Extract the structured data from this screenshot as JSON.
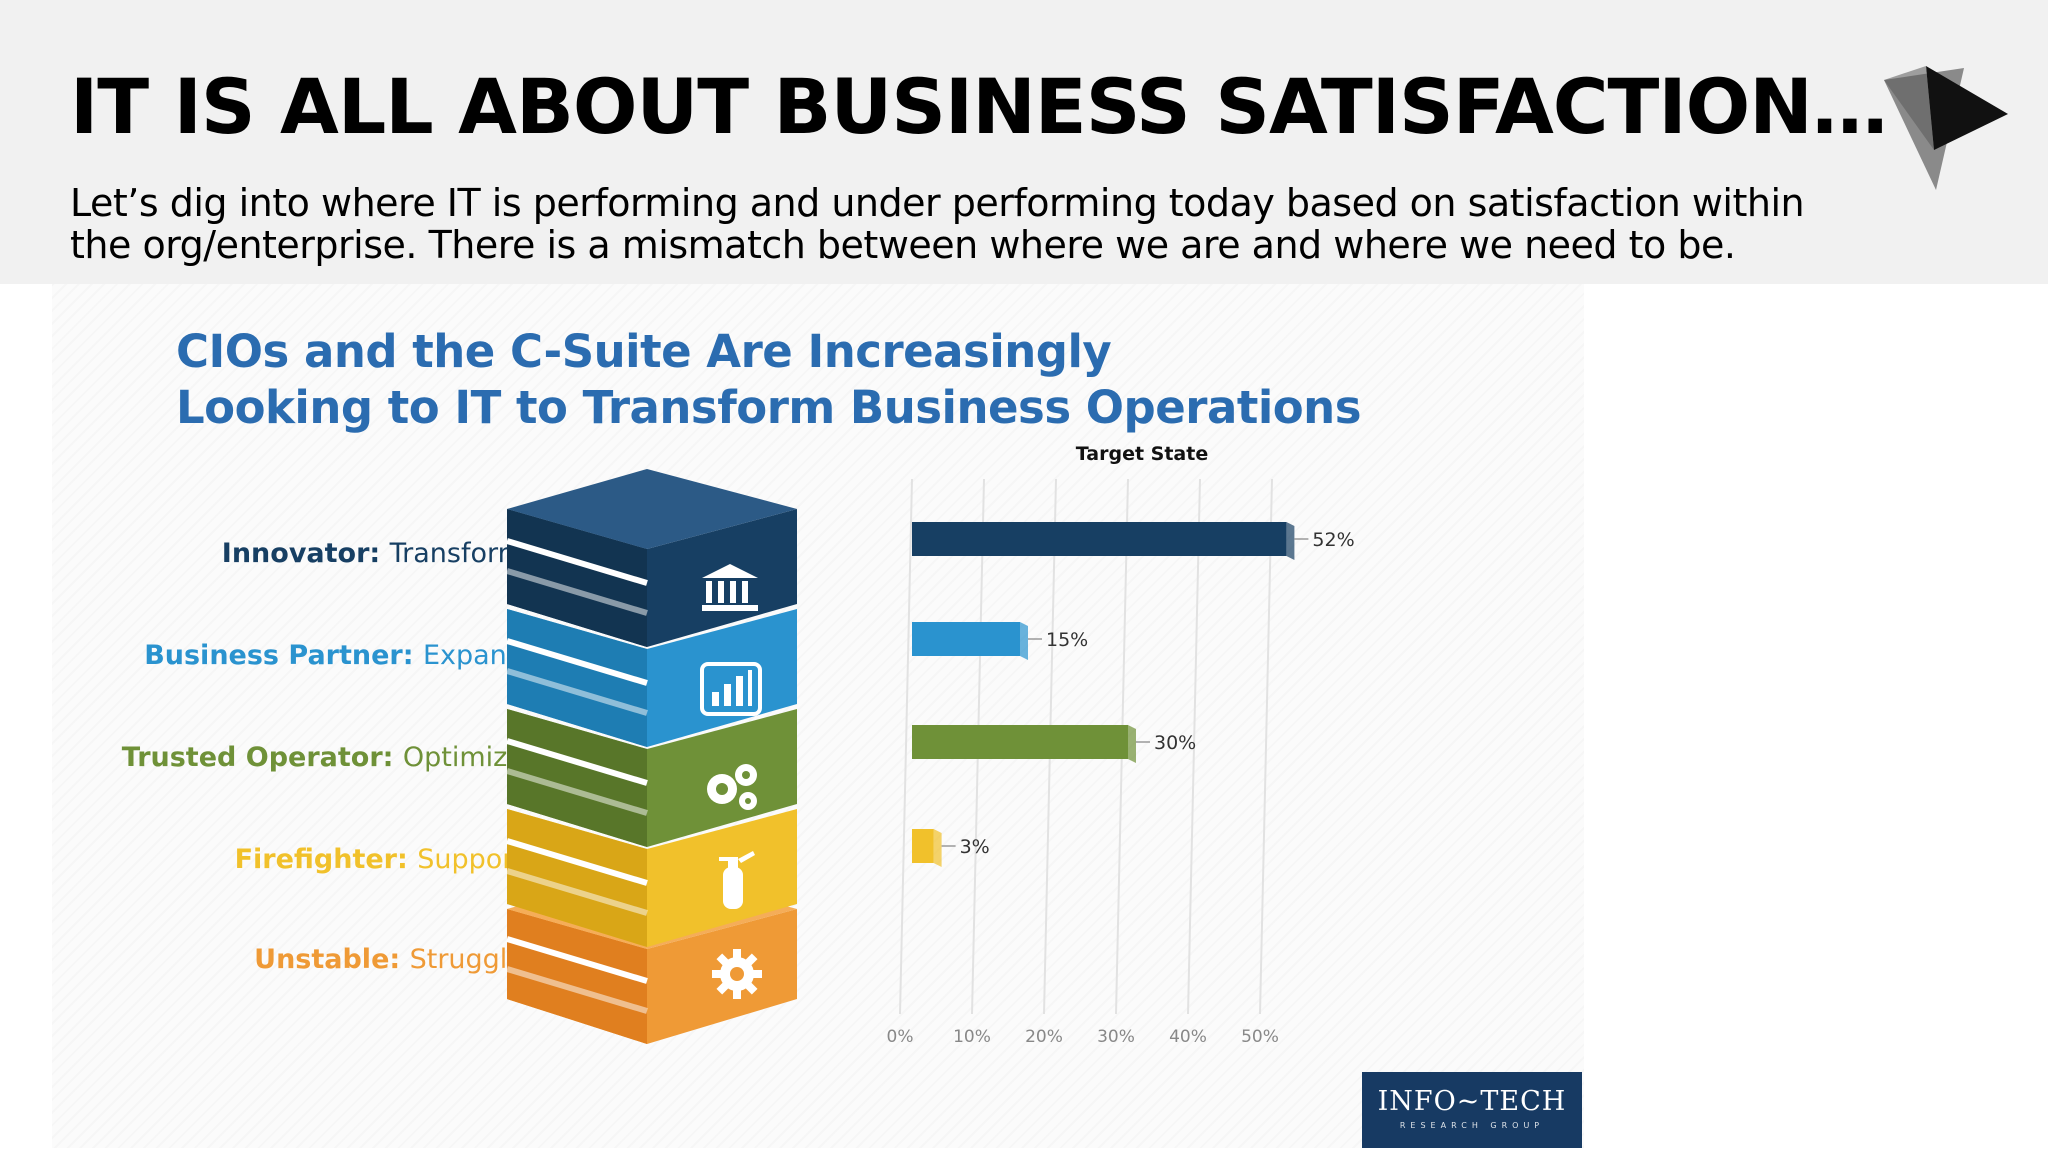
{
  "slide": {
    "title": "IT IS ALL ABOUT BUSINESS SATISFACTION…",
    "subtitle": "Let’s dig into where IT is performing and under performing today based on satisfaction within the org/enterprise. There is a mismatch between where we are and where we need to be."
  },
  "infographic": {
    "title_line1": "CIOs and the C-Suite Are Increasingly",
    "title_line2": "Looking to IT to Transform Business Operations",
    "publisher": "INFO~TECH",
    "publisher_sub": "RESEARCH GROUP",
    "levels": [
      {
        "role": "Innovator",
        "action": "Transforms",
        "color": "#173f63",
        "icon": "bank-icon"
      },
      {
        "role": "Business Partner",
        "action": "Expands",
        "color": "#2a93cf",
        "icon": "bar-chart-icon"
      },
      {
        "role": "Trusted Operator",
        "action": "Optimizes",
        "color": "#6f9138",
        "icon": "gears-icon"
      },
      {
        "role": "Firefighter",
        "action": "Supports",
        "color": "#f1c12b",
        "icon": "fire-extinguisher-icon"
      },
      {
        "role": "Unstable",
        "action": "Struggles",
        "color": "#ef9a36",
        "icon": "gear-icon"
      }
    ]
  },
  "chart_data": {
    "type": "bar",
    "orientation": "horizontal",
    "title": "Target State",
    "categories": [
      "Innovator: Transforms",
      "Business Partner: Expands",
      "Trusted Operator: Optimizes",
      "Firefighter: Supports",
      "Unstable: Struggles"
    ],
    "values": [
      52,
      15,
      30,
      3,
      null
    ],
    "data_labels": [
      "52%",
      "15%",
      "30%",
      "3%",
      ""
    ],
    "colors": [
      "#173f63",
      "#2a93cf",
      "#6f9138",
      "#f1c12b",
      "#ef9a36"
    ],
    "x_ticks": [
      "0%",
      "10%",
      "20%",
      "30%",
      "40%",
      "50%"
    ],
    "xlim": [
      0,
      52
    ],
    "grid": true
  }
}
